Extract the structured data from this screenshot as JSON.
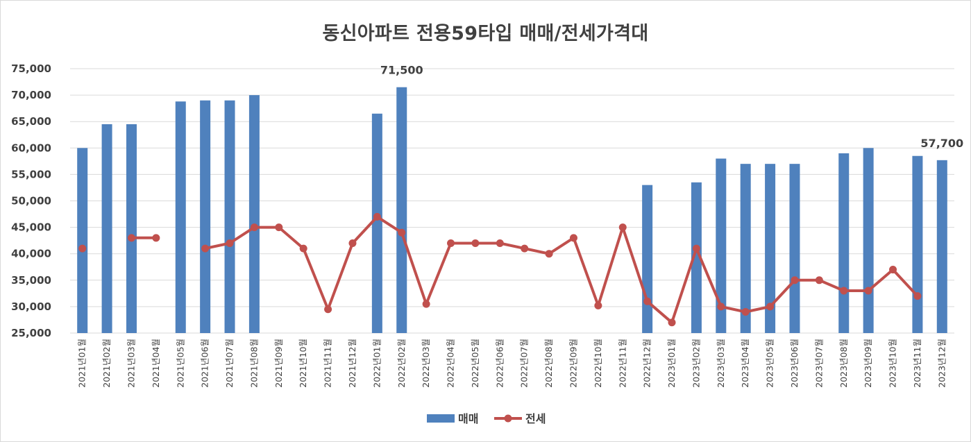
{
  "chart_data": {
    "type": "bar+line",
    "title": "동신아파트 전용59타입 매매/전세가격대",
    "categories": [
      "2021년01월",
      "2021년02월",
      "2021년03월",
      "2021년04월",
      "2021년05월",
      "2021년06월",
      "2021년07월",
      "2021년08월",
      "2021년09월",
      "2021년10월",
      "2021년11월",
      "2021년12월",
      "2022년01월",
      "2022년02월",
      "2022년03월",
      "2022년04월",
      "2022년05월",
      "2022년06월",
      "2022년07월",
      "2022년08월",
      "2022년09월",
      "2022년10월",
      "2022년11월",
      "2022년12월",
      "2023년01월",
      "2023년02월",
      "2023년03월",
      "2023년04월",
      "2023년05월",
      "2023년06월",
      "2023년07월",
      "2023년08월",
      "2023년09월",
      "2023년10월",
      "2023년11월",
      "2023년12월"
    ],
    "series": [
      {
        "name": "매매",
        "type": "bar",
        "color": "#4f81bd",
        "values": [
          60000,
          64500,
          64500,
          null,
          68800,
          69000,
          69000,
          70000,
          null,
          null,
          null,
          null,
          66500,
          71500,
          null,
          null,
          null,
          null,
          null,
          null,
          null,
          null,
          null,
          53000,
          null,
          53500,
          58000,
          57000,
          57000,
          57000,
          null,
          59000,
          60000,
          null,
          58500,
          57700
        ]
      },
      {
        "name": "전세",
        "type": "line",
        "color": "#c0504d",
        "values": [
          41000,
          null,
          43000,
          43000,
          null,
          41000,
          42000,
          45000,
          45000,
          41000,
          29500,
          42000,
          47000,
          44000,
          30500,
          42000,
          42000,
          42000,
          41000,
          40000,
          43000,
          30200,
          45000,
          31000,
          27000,
          41000,
          30000,
          29000,
          30000,
          35000,
          35000,
          33000,
          33000,
          37000,
          32000,
          null
        ]
      }
    ],
    "data_labels": [
      {
        "category": "2022년02월",
        "text": "71,500"
      },
      {
        "category": "2023년12월",
        "text": "57,700"
      }
    ],
    "y_ticks": [
      "25,000",
      "30,000",
      "35,000",
      "40,000",
      "45,000",
      "50,000",
      "55,000",
      "60,000",
      "65,000",
      "70,000",
      "75,000"
    ],
    "ylim": [
      25000,
      75000
    ],
    "grid": true,
    "legend": {
      "placement": "bottom",
      "entries": [
        "매매",
        "전세"
      ]
    }
  }
}
